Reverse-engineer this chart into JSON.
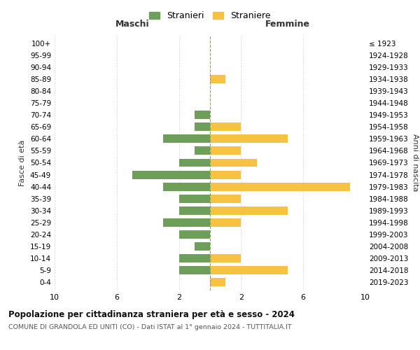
{
  "age_groups": [
    "100+",
    "95-99",
    "90-94",
    "85-89",
    "80-84",
    "75-79",
    "70-74",
    "65-69",
    "60-64",
    "55-59",
    "50-54",
    "45-49",
    "40-44",
    "35-39",
    "30-34",
    "25-29",
    "20-24",
    "15-19",
    "10-14",
    "5-9",
    "0-4"
  ],
  "birth_years": [
    "≤ 1923",
    "1924-1928",
    "1929-1933",
    "1934-1938",
    "1939-1943",
    "1944-1948",
    "1949-1953",
    "1954-1958",
    "1959-1963",
    "1964-1968",
    "1969-1973",
    "1974-1978",
    "1979-1983",
    "1984-1988",
    "1989-1993",
    "1994-1998",
    "1999-2003",
    "2004-2008",
    "2009-2013",
    "2014-2018",
    "2019-2023"
  ],
  "maschi": [
    0,
    0,
    0,
    0,
    0,
    0,
    1,
    1,
    3,
    1,
    2,
    5,
    3,
    2,
    2,
    3,
    2,
    1,
    2,
    2,
    0
  ],
  "femmine": [
    0,
    0,
    0,
    1,
    0,
    0,
    0,
    2,
    5,
    2,
    3,
    2,
    9,
    2,
    5,
    2,
    0,
    0,
    2,
    5,
    1
  ],
  "color_maschi": "#6d9e5a",
  "color_femmine": "#f5c242",
  "title": "Popolazione per cittadinanza straniera per età e sesso - 2024",
  "subtitle": "COMUNE DI GRANDOLA ED UNITI (CO) - Dati ISTAT al 1° gennaio 2024 - TUTTITALIA.IT",
  "xlabel_left": "Maschi",
  "xlabel_right": "Femmine",
  "ylabel_left": "Fasce di età",
  "ylabel_right": "Anni di nascita",
  "legend_maschi": "Stranieri",
  "legend_femmine": "Straniere",
  "background_color": "#ffffff",
  "grid_color": "#cccccc"
}
